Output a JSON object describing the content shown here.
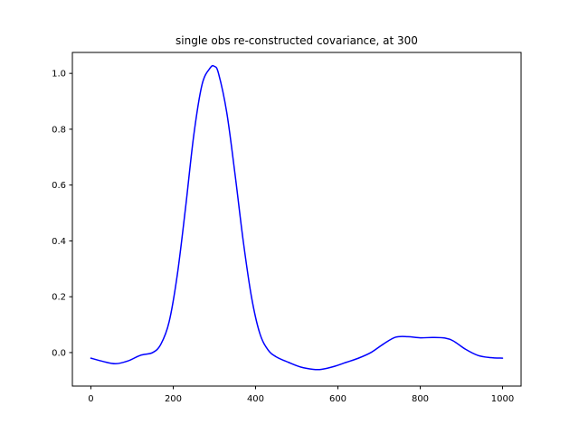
{
  "chart_data": {
    "type": "line",
    "title": "single obs re-constructed covariance, at 300",
    "xlabel": "",
    "ylabel": "",
    "xlim": [
      -45,
      1045
    ],
    "ylim": [
      -0.12,
      1.075
    ],
    "x_ticks": [
      0,
      200,
      400,
      600,
      800,
      1000
    ],
    "x_tick_labels": [
      "0",
      "200",
      "400",
      "600",
      "800",
      "1000"
    ],
    "y_ticks": [
      0.0,
      0.2,
      0.4,
      0.6,
      0.8,
      1.0
    ],
    "y_tick_labels": [
      "0.0",
      "0.2",
      "0.4",
      "0.6",
      "0.8",
      "1.0"
    ],
    "grid": false,
    "series": [
      {
        "color": "#0000ff",
        "x": [
          0,
          30,
          60,
          90,
          120,
          150,
          170,
          190,
          210,
          230,
          250,
          270,
          290,
          300,
          310,
          330,
          350,
          370,
          390,
          410,
          430,
          450,
          480,
          510,
          540,
          560,
          590,
          620,
          650,
          680,
          710,
          740,
          770,
          800,
          830,
          860,
          880,
          910,
          940,
          970,
          1000
        ],
        "y": [
          -0.02,
          -0.032,
          -0.04,
          -0.03,
          -0.01,
          0.0,
          0.03,
          0.11,
          0.28,
          0.52,
          0.78,
          0.96,
          1.02,
          1.025,
          1.0,
          0.86,
          0.64,
          0.4,
          0.2,
          0.07,
          0.01,
          -0.015,
          -0.035,
          -0.052,
          -0.06,
          -0.06,
          -0.05,
          -0.035,
          -0.02,
          0.0,
          0.03,
          0.055,
          0.057,
          0.053,
          0.054,
          0.052,
          0.042,
          0.012,
          -0.01,
          -0.018,
          -0.02
        ]
      }
    ]
  }
}
